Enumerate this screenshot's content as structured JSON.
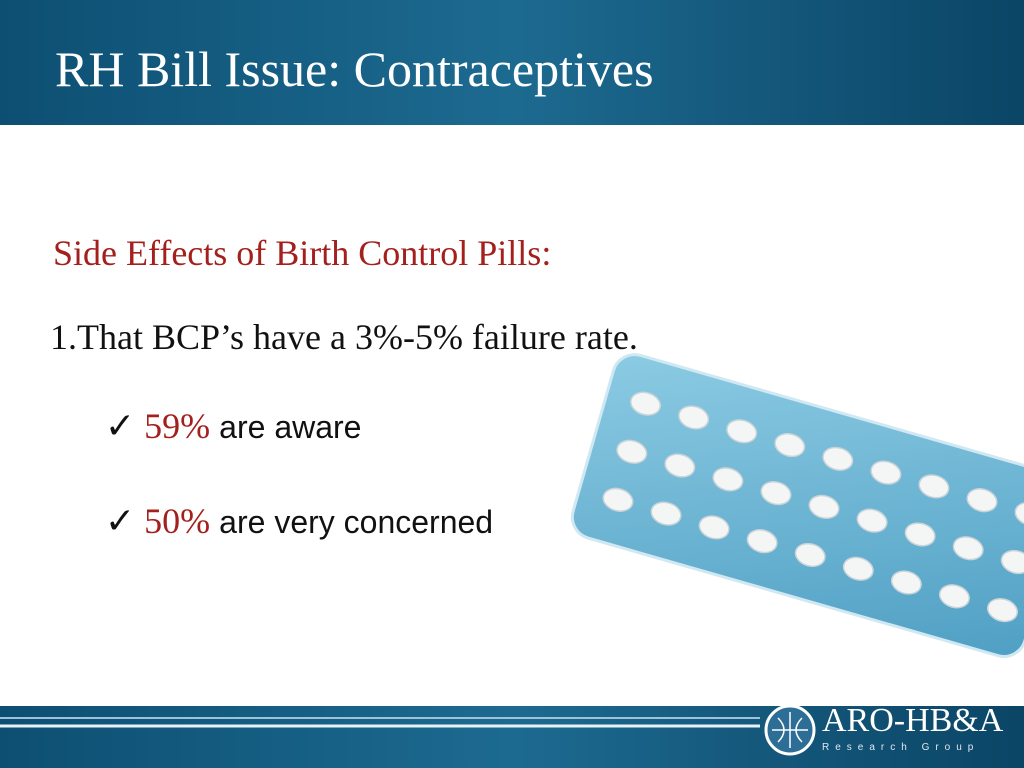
{
  "header": {
    "title": "RH Bill Issue: Contraceptives"
  },
  "subtitle": "Side Effects of Birth Control Pills:",
  "point": "1.That BCP’s have a 3%-5% failure rate.",
  "bullets": [
    {
      "mark": "✓",
      "value": "59%",
      "text": "are aware"
    },
    {
      "mark": "✓",
      "value": "50%",
      "text": "are very concerned"
    }
  ],
  "logo": {
    "name": "ARO-HB&A",
    "tagline": "Research Group"
  }
}
